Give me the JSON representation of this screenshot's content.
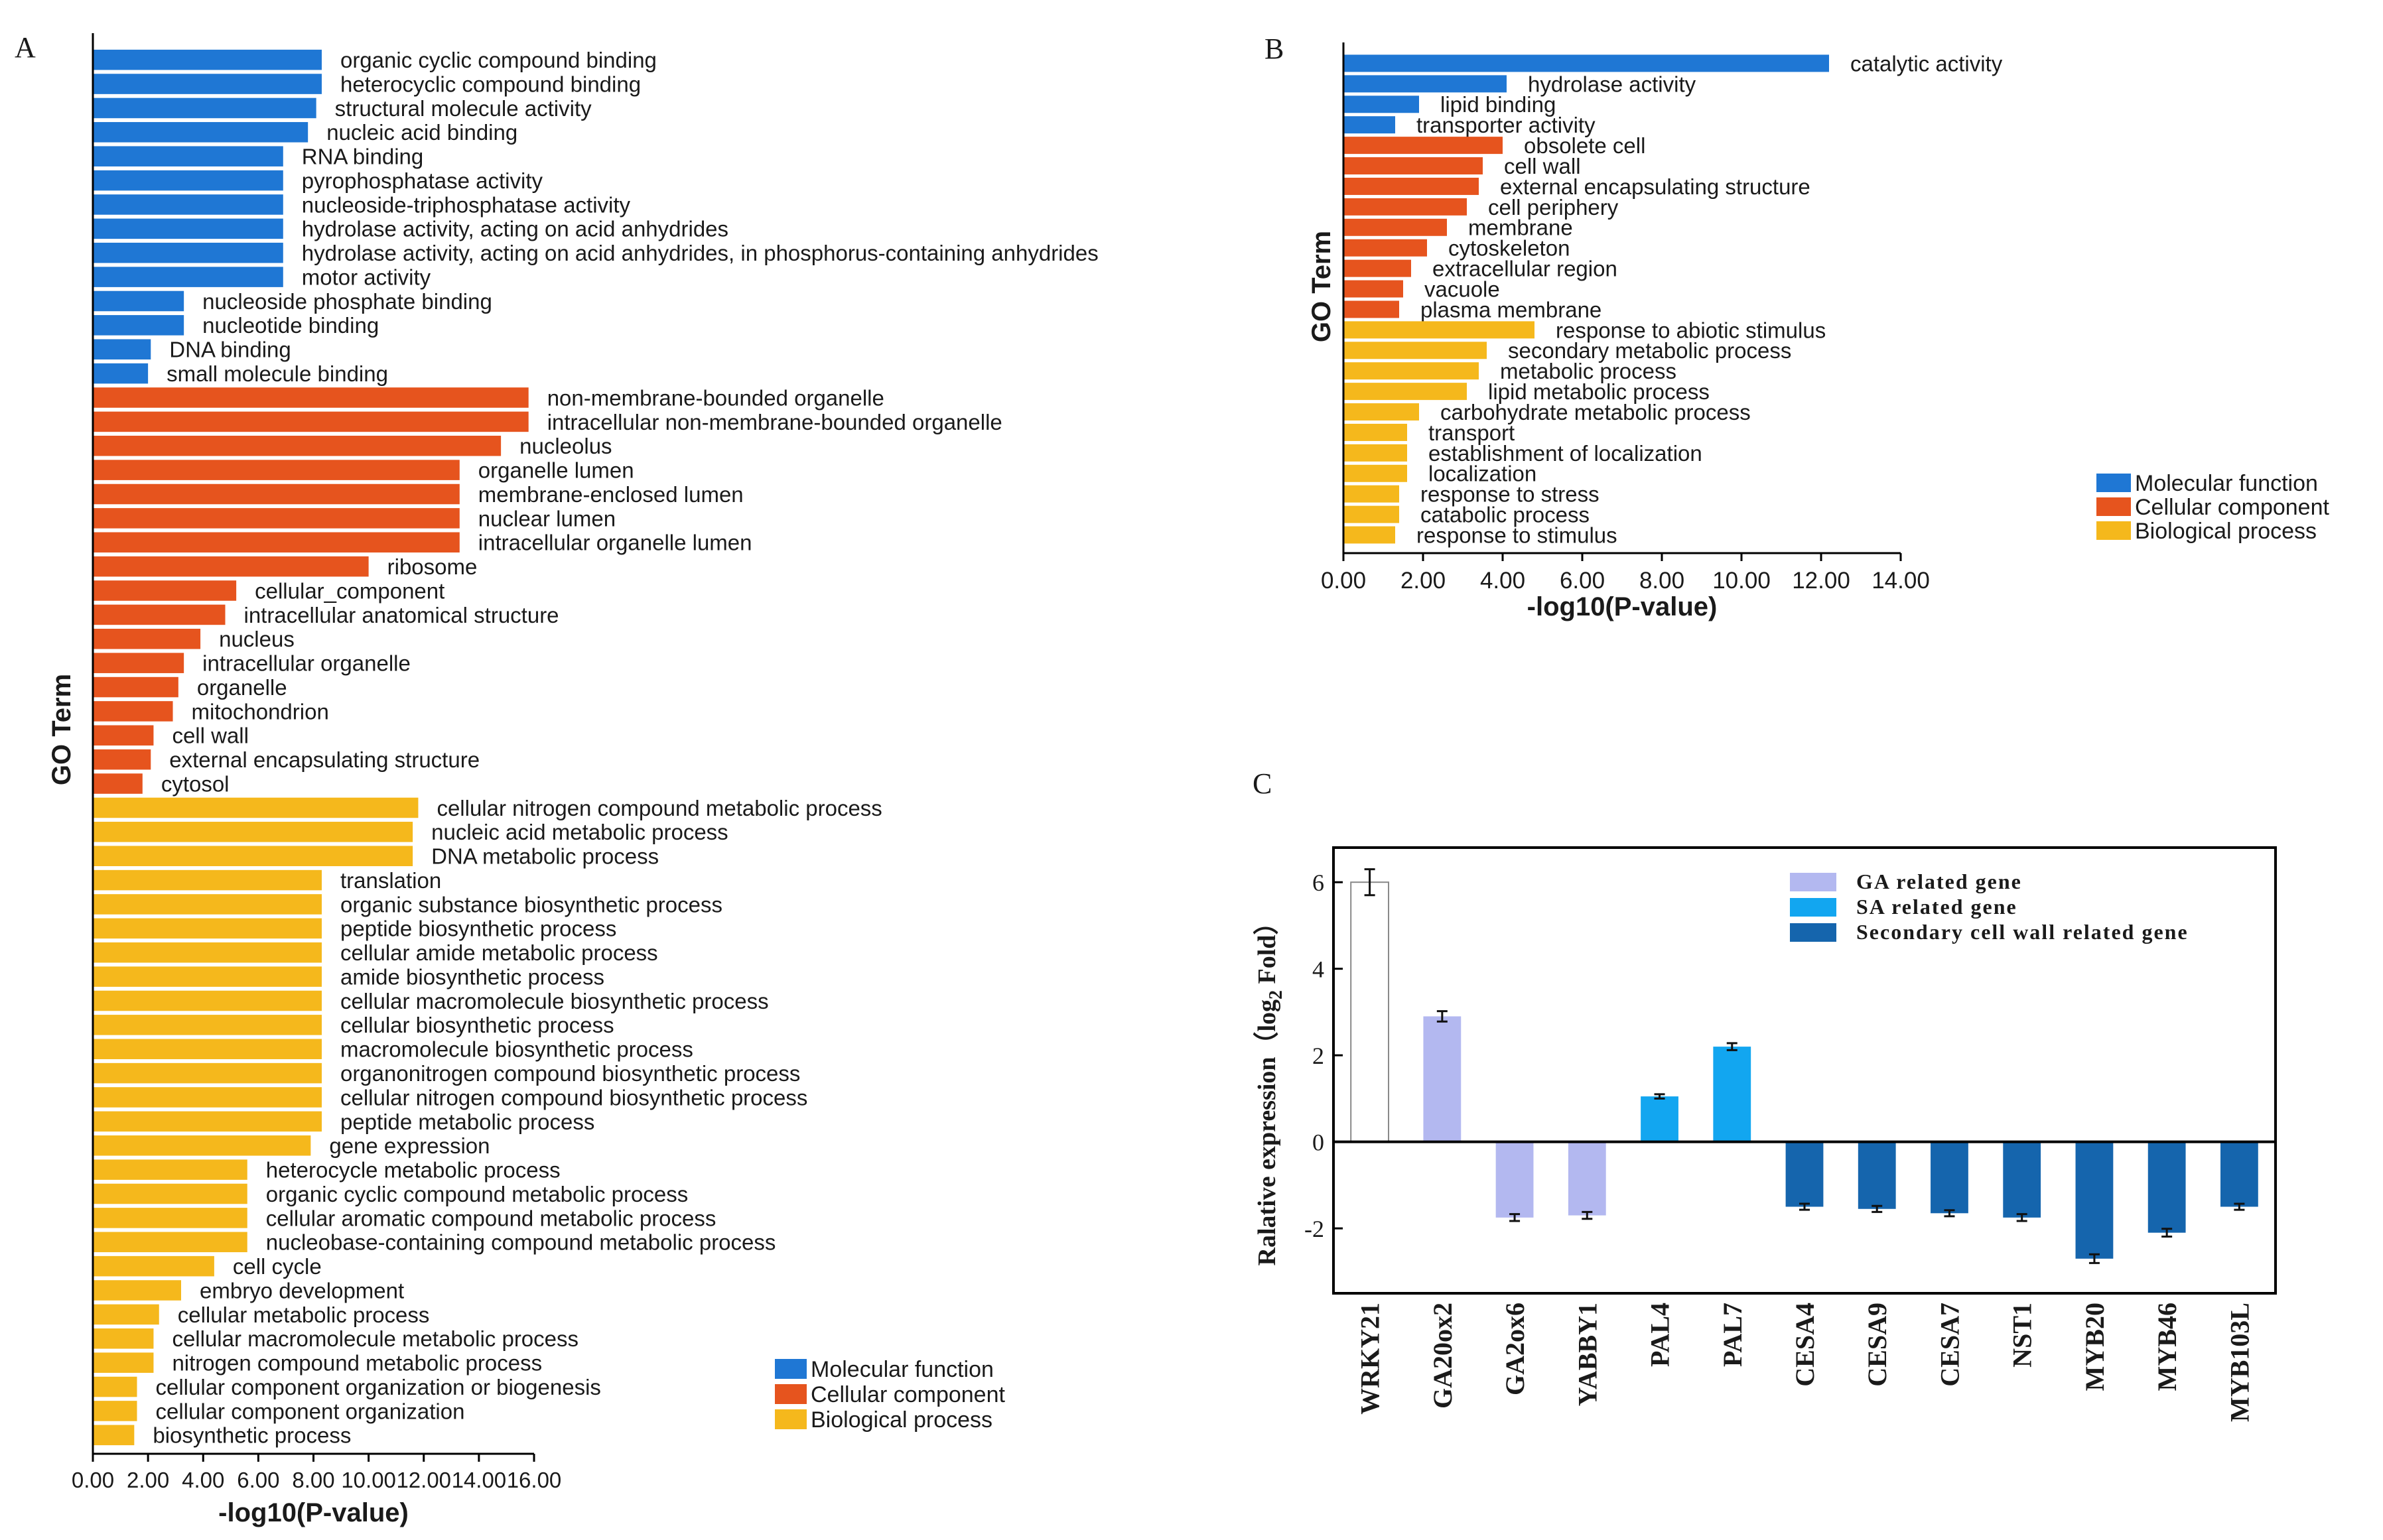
{
  "colors": {
    "molecular": "#1f77d4",
    "cellular": "#e6541e",
    "biological": "#f5b81c",
    "ga": "#b3b8f0",
    "sa": "#12a6f0",
    "scw": "#1565ad",
    "wrky": "#ffffff",
    "axis": "#000000",
    "text": "#1a1a1a"
  },
  "chart_data": [
    {
      "panel": "A",
      "type": "bar",
      "orientation": "horizontal",
      "panel_label": "A",
      "xlabel": "-log10(P-value)",
      "ylabel": "GO Term",
      "xlim": [
        0,
        16
      ],
      "xticks": [
        "0.00",
        "2.00",
        "4.00",
        "6.00",
        "8.00",
        "10.00",
        "12.00",
        "14.00",
        "16.00"
      ],
      "legend": [
        {
          "label": "Molecular function",
          "group": "molecular"
        },
        {
          "label": "Cellular component",
          "group": "cellular"
        },
        {
          "label": "Biological process",
          "group": "biological"
        }
      ],
      "bars": [
        {
          "label": "organic cyclic compound binding",
          "value": 8.3,
          "group": "molecular"
        },
        {
          "label": "heterocyclic compound binding",
          "value": 8.3,
          "group": "molecular"
        },
        {
          "label": "structural molecule activity",
          "value": 8.1,
          "group": "molecular"
        },
        {
          "label": "nucleic acid binding",
          "value": 7.8,
          "group": "molecular"
        },
        {
          "label": "RNA binding",
          "value": 6.9,
          "group": "molecular"
        },
        {
          "label": "pyrophosphatase activity",
          "value": 6.9,
          "group": "molecular"
        },
        {
          "label": "nucleoside-triphosphatase activity",
          "value": 6.9,
          "group": "molecular"
        },
        {
          "label": "hydrolase activity, acting on acid anhydrides",
          "value": 6.9,
          "group": "molecular"
        },
        {
          "label": "hydrolase activity, acting on acid anhydrides, in phosphorus-containing anhydrides",
          "value": 6.9,
          "group": "molecular"
        },
        {
          "label": "motor activity",
          "value": 6.9,
          "group": "molecular"
        },
        {
          "label": "nucleoside phosphate binding",
          "value": 3.3,
          "group": "molecular"
        },
        {
          "label": "nucleotide binding",
          "value": 3.3,
          "group": "molecular"
        },
        {
          "label": "DNA binding",
          "value": 2.1,
          "group": "molecular"
        },
        {
          "label": "small molecule binding",
          "value": 2.0,
          "group": "molecular"
        },
        {
          "label": "non-membrane-bounded organelle",
          "value": 15.8,
          "group": "cellular"
        },
        {
          "label": "intracellular non-membrane-bounded organelle",
          "value": 15.8,
          "group": "cellular"
        },
        {
          "label": "nucleolus",
          "value": 14.8,
          "group": "cellular"
        },
        {
          "label": "organelle lumen",
          "value": 13.3,
          "group": "cellular"
        },
        {
          "label": "membrane-enclosed lumen",
          "value": 13.3,
          "group": "cellular"
        },
        {
          "label": "nuclear lumen",
          "value": 13.3,
          "group": "cellular"
        },
        {
          "label": "intracellular organelle lumen",
          "value": 13.3,
          "group": "cellular"
        },
        {
          "label": "ribosome",
          "value": 10.0,
          "group": "cellular"
        },
        {
          "label": "cellular_component",
          "value": 5.2,
          "group": "cellular"
        },
        {
          "label": "intracellular anatomical structure",
          "value": 4.8,
          "group": "cellular"
        },
        {
          "label": "nucleus",
          "value": 3.9,
          "group": "cellular"
        },
        {
          "label": "intracellular organelle",
          "value": 3.3,
          "group": "cellular"
        },
        {
          "label": "organelle",
          "value": 3.1,
          "group": "cellular"
        },
        {
          "label": "mitochondrion",
          "value": 2.9,
          "group": "cellular"
        },
        {
          "label": "cell wall",
          "value": 2.2,
          "group": "cellular"
        },
        {
          "label": "external encapsulating structure",
          "value": 2.1,
          "group": "cellular"
        },
        {
          "label": "cytosol",
          "value": 1.8,
          "group": "cellular"
        },
        {
          "label": "cellular nitrogen compound metabolic process",
          "value": 11.8,
          "group": "biological"
        },
        {
          "label": "nucleic acid metabolic process",
          "value": 11.6,
          "group": "biological"
        },
        {
          "label": "DNA metabolic process",
          "value": 11.6,
          "group": "biological"
        },
        {
          "label": "translation",
          "value": 8.3,
          "group": "biological"
        },
        {
          "label": "organic substance biosynthetic process",
          "value": 8.3,
          "group": "biological"
        },
        {
          "label": "peptide biosynthetic process",
          "value": 8.3,
          "group": "biological"
        },
        {
          "label": "cellular amide metabolic process",
          "value": 8.3,
          "group": "biological"
        },
        {
          "label": "amide biosynthetic process",
          "value": 8.3,
          "group": "biological"
        },
        {
          "label": "cellular macromolecule biosynthetic process",
          "value": 8.3,
          "group": "biological"
        },
        {
          "label": "cellular biosynthetic process",
          "value": 8.3,
          "group": "biological"
        },
        {
          "label": "macromolecule biosynthetic process",
          "value": 8.3,
          "group": "biological"
        },
        {
          "label": "organonitrogen compound biosynthetic process",
          "value": 8.3,
          "group": "biological"
        },
        {
          "label": "cellular nitrogen compound biosynthetic process",
          "value": 8.3,
          "group": "biological"
        },
        {
          "label": "peptide metabolic process",
          "value": 8.3,
          "group": "biological"
        },
        {
          "label": "gene expression",
          "value": 7.9,
          "group": "biological"
        },
        {
          "label": "heterocycle metabolic process",
          "value": 5.6,
          "group": "biological"
        },
        {
          "label": "organic cyclic compound metabolic process",
          "value": 5.6,
          "group": "biological"
        },
        {
          "label": "cellular aromatic compound metabolic process",
          "value": 5.6,
          "group": "biological"
        },
        {
          "label": "nucleobase-containing compound metabolic process",
          "value": 5.6,
          "group": "biological"
        },
        {
          "label": "cell cycle",
          "value": 4.4,
          "group": "biological"
        },
        {
          "label": "embryo development",
          "value": 3.2,
          "group": "biological"
        },
        {
          "label": "cellular metabolic process",
          "value": 2.4,
          "group": "biological"
        },
        {
          "label": "cellular macromolecule metabolic process",
          "value": 2.2,
          "group": "biological"
        },
        {
          "label": "nitrogen compound metabolic process",
          "value": 2.2,
          "group": "biological"
        },
        {
          "label": "cellular component organization or biogenesis",
          "value": 1.6,
          "group": "biological"
        },
        {
          "label": "cellular component organization",
          "value": 1.6,
          "group": "biological"
        },
        {
          "label": "biosynthetic process",
          "value": 1.5,
          "group": "biological"
        }
      ]
    },
    {
      "panel": "B",
      "type": "bar",
      "orientation": "horizontal",
      "panel_label": "B",
      "xlabel": "-log10(P-value)",
      "ylabel": "GO Term",
      "xlim": [
        0,
        14
      ],
      "xticks": [
        "0.00",
        "2.00",
        "4.00",
        "6.00",
        "8.00",
        "10.00",
        "12.00",
        "14.00"
      ],
      "legend": [
        {
          "label": "Molecular function",
          "group": "molecular"
        },
        {
          "label": "Cellular component",
          "group": "cellular"
        },
        {
          "label": "Biological process",
          "group": "biological"
        }
      ],
      "bars": [
        {
          "label": "catalytic activity",
          "value": 12.2,
          "group": "molecular"
        },
        {
          "label": "hydrolase activity",
          "value": 4.1,
          "group": "molecular"
        },
        {
          "label": "lipid binding",
          "value": 1.9,
          "group": "molecular"
        },
        {
          "label": "transporter activity",
          "value": 1.3,
          "group": "molecular"
        },
        {
          "label": "obsolete cell",
          "value": 4.0,
          "group": "cellular"
        },
        {
          "label": "cell wall",
          "value": 3.5,
          "group": "cellular"
        },
        {
          "label": "external encapsulating structure",
          "value": 3.4,
          "group": "cellular"
        },
        {
          "label": "cell periphery",
          "value": 3.1,
          "group": "cellular"
        },
        {
          "label": "membrane",
          "value": 2.6,
          "group": "cellular"
        },
        {
          "label": "cytoskeleton",
          "value": 2.1,
          "group": "cellular"
        },
        {
          "label": "extracellular region",
          "value": 1.7,
          "group": "cellular"
        },
        {
          "label": "vacuole",
          "value": 1.5,
          "group": "cellular"
        },
        {
          "label": "plasma membrane",
          "value": 1.4,
          "group": "cellular"
        },
        {
          "label": "response to abiotic stimulus",
          "value": 4.8,
          "group": "biological"
        },
        {
          "label": "secondary metabolic process",
          "value": 3.6,
          "group": "biological"
        },
        {
          "label": "metabolic process",
          "value": 3.4,
          "group": "biological"
        },
        {
          "label": "lipid metabolic process",
          "value": 3.1,
          "group": "biological"
        },
        {
          "label": "carbohydrate metabolic process",
          "value": 1.9,
          "group": "biological"
        },
        {
          "label": "transport",
          "value": 1.6,
          "group": "biological"
        },
        {
          "label": "establishment of localization",
          "value": 1.6,
          "group": "biological"
        },
        {
          "label": "localization",
          "value": 1.6,
          "group": "biological"
        },
        {
          "label": "response to stress",
          "value": 1.4,
          "group": "biological"
        },
        {
          "label": "catabolic process",
          "value": 1.4,
          "group": "biological"
        },
        {
          "label": "response to stimulus",
          "value": 1.3,
          "group": "biological"
        }
      ]
    },
    {
      "panel": "C",
      "type": "bar",
      "orientation": "vertical",
      "panel_label": "C",
      "ylabel_main": "Ralative expression（log",
      "ylabel_sub": "2",
      "ylabel_end": " Fold）",
      "ylim": [
        -3.5,
        6.8
      ],
      "yticks": [
        -2,
        0,
        2,
        4,
        6
      ],
      "legend": [
        {
          "label": "GA related gene",
          "group": "ga"
        },
        {
          "label": "SA related gene",
          "group": "sa"
        },
        {
          "label": "Secondary cell wall related gene",
          "group": "scw"
        }
      ],
      "bars": [
        {
          "label": "WRKY21",
          "value": 6.0,
          "error": 0.3,
          "group": "wrky"
        },
        {
          "label": "GA20ox2",
          "value": 2.9,
          "error": 0.12,
          "group": "ga"
        },
        {
          "label": "GA2ox6",
          "value": -1.75,
          "error": 0.08,
          "group": "ga"
        },
        {
          "label": "YABBY1",
          "value": -1.7,
          "error": 0.08,
          "group": "ga"
        },
        {
          "label": "PAL4",
          "value": 1.05,
          "error": 0.05,
          "group": "sa"
        },
        {
          "label": "PAL7",
          "value": 2.2,
          "error": 0.08,
          "group": "sa"
        },
        {
          "label": "CESA4",
          "value": -1.5,
          "error": 0.07,
          "group": "scw"
        },
        {
          "label": "CESA9",
          "value": -1.55,
          "error": 0.07,
          "group": "scw"
        },
        {
          "label": "CESA7",
          "value": -1.65,
          "error": 0.07,
          "group": "scw"
        },
        {
          "label": "NST1",
          "value": -1.75,
          "error": 0.08,
          "group": "scw"
        },
        {
          "label": "MYB20",
          "value": -2.7,
          "error": 0.1,
          "group": "scw"
        },
        {
          "label": "MYB46",
          "value": -2.1,
          "error": 0.09,
          "group": "scw"
        },
        {
          "label": "MYB103L",
          "value": -1.5,
          "error": 0.07,
          "group": "scw"
        }
      ]
    }
  ]
}
